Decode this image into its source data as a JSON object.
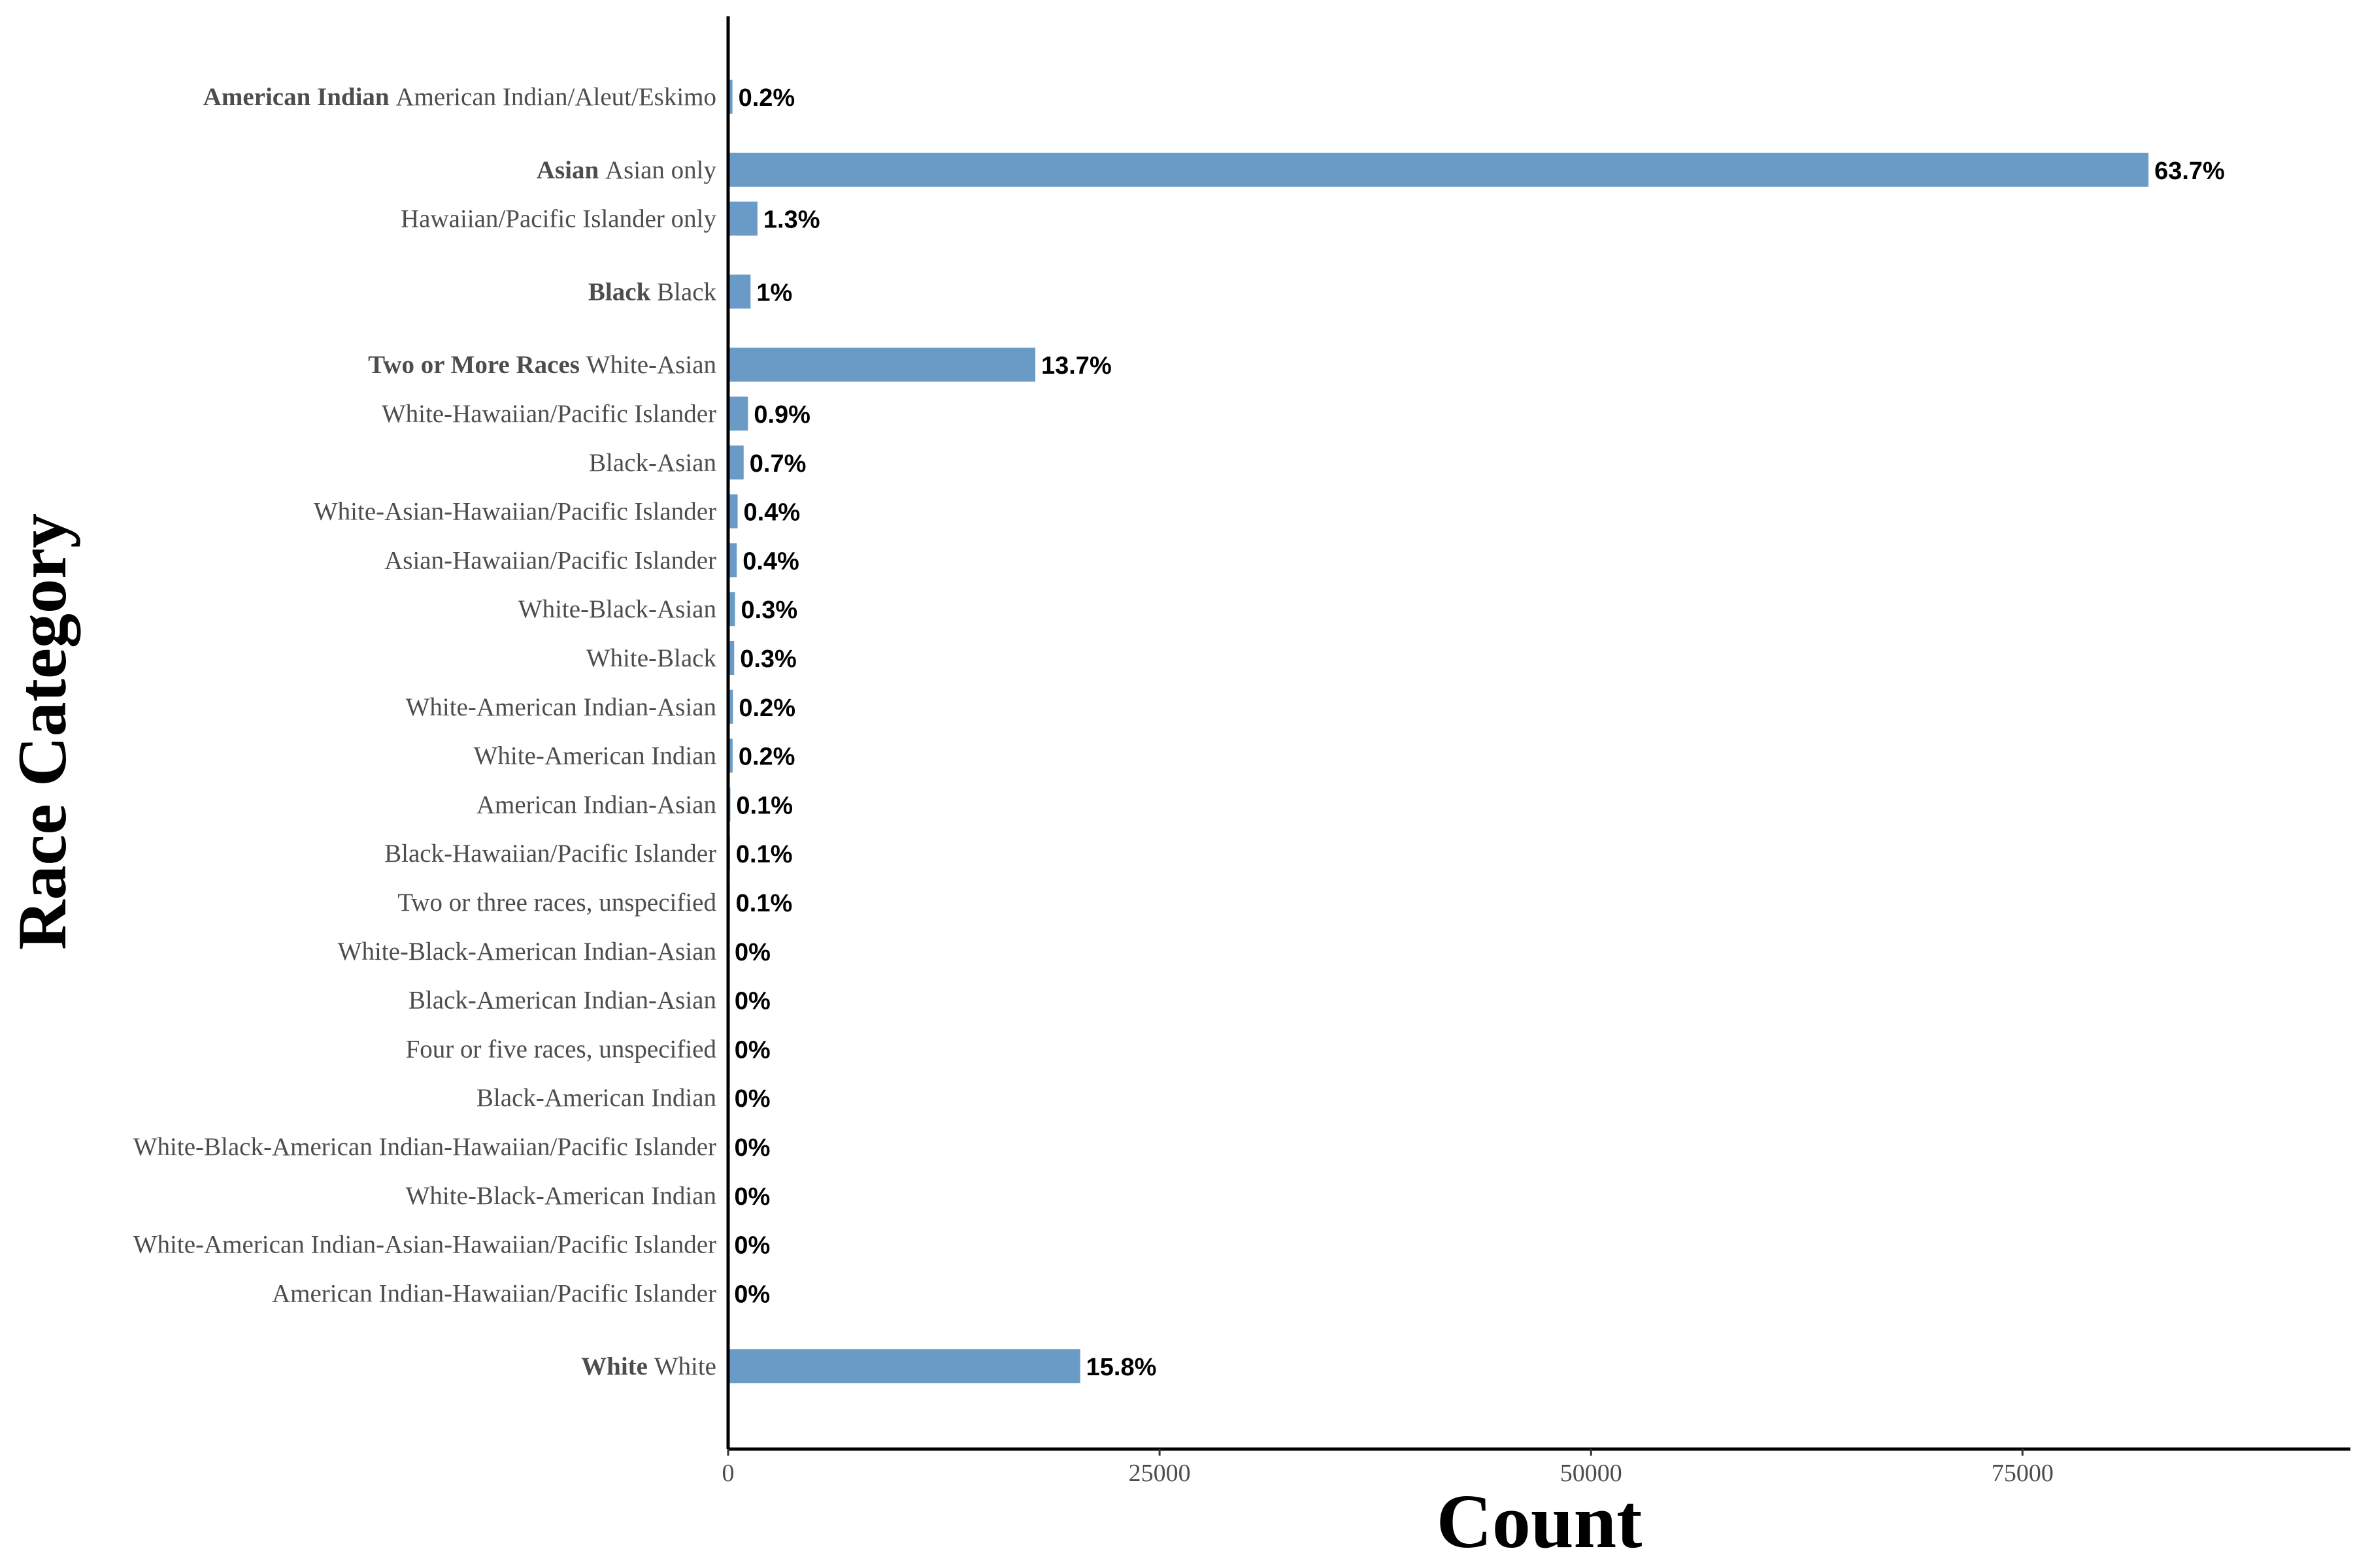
{
  "chart_data": {
    "type": "bar",
    "orientation": "horizontal",
    "xlabel": "Count",
    "ylabel": "Race Category",
    "xlim": [
      0,
      94000
    ],
    "xticks": [
      0,
      25000,
      50000,
      75000
    ],
    "grid": false,
    "bar_color": "#6a9bc6",
    "groups": [
      {
        "name": "American Indian",
        "items": [
          {
            "label": "American Indian/Aleut/Eskimo",
            "value": 250,
            "pct": "0.2%"
          }
        ]
      },
      {
        "name": "Asian",
        "items": [
          {
            "label": "Asian only",
            "value": 82300,
            "pct": "63.7%"
          },
          {
            "label": "Hawaiian/Pacific Islander only",
            "value": 1700,
            "pct": "1.3%"
          }
        ]
      },
      {
        "name": "Black",
        "items": [
          {
            "label": "Black",
            "value": 1300,
            "pct": "1%"
          }
        ]
      },
      {
        "name": "Two or More Races",
        "items": [
          {
            "label": "White-Asian",
            "value": 17800,
            "pct": "13.7%"
          },
          {
            "label": "White-Hawaiian/Pacific Islander",
            "value": 1150,
            "pct": "0.9%"
          },
          {
            "label": "Black-Asian",
            "value": 900,
            "pct": "0.7%"
          },
          {
            "label": "White-Asian-Hawaiian/Pacific Islander",
            "value": 550,
            "pct": "0.4%"
          },
          {
            "label": "Asian-Hawaiian/Pacific Islander",
            "value": 500,
            "pct": "0.4%"
          },
          {
            "label": "White-Black-Asian",
            "value": 400,
            "pct": "0.3%"
          },
          {
            "label": "White-Black",
            "value": 350,
            "pct": "0.3%"
          },
          {
            "label": "White-American Indian-Asian",
            "value": 280,
            "pct": "0.2%"
          },
          {
            "label": "White-American Indian",
            "value": 260,
            "pct": "0.2%"
          },
          {
            "label": "American Indian-Asian",
            "value": 130,
            "pct": "0.1%"
          },
          {
            "label": "Black-Hawaiian/Pacific Islander",
            "value": 110,
            "pct": "0.1%"
          },
          {
            "label": "Two or three races, unspecified",
            "value": 100,
            "pct": "0.1%"
          },
          {
            "label": "White-Black-American Indian-Asian",
            "value": 40,
            "pct": "0%"
          },
          {
            "label": "Black-American Indian-Asian",
            "value": 35,
            "pct": "0%"
          },
          {
            "label": "Four or five races, unspecified",
            "value": 30,
            "pct": "0%"
          },
          {
            "label": "Black-American Indian",
            "value": 25,
            "pct": "0%"
          },
          {
            "label": "White-Black-American Indian-Hawaiian/Pacific Islander",
            "value": 20,
            "pct": "0%"
          },
          {
            "label": "White-Black-American Indian",
            "value": 15,
            "pct": "0%"
          },
          {
            "label": "White-American Indian-Asian-Hawaiian/Pacific Islander",
            "value": 12,
            "pct": "0%"
          },
          {
            "label": "American Indian-Hawaiian/Pacific Islander",
            "value": 10,
            "pct": "0%"
          }
        ]
      },
      {
        "name": "White",
        "items": [
          {
            "label": "White",
            "value": 20400,
            "pct": "15.8%"
          }
        ]
      }
    ]
  }
}
